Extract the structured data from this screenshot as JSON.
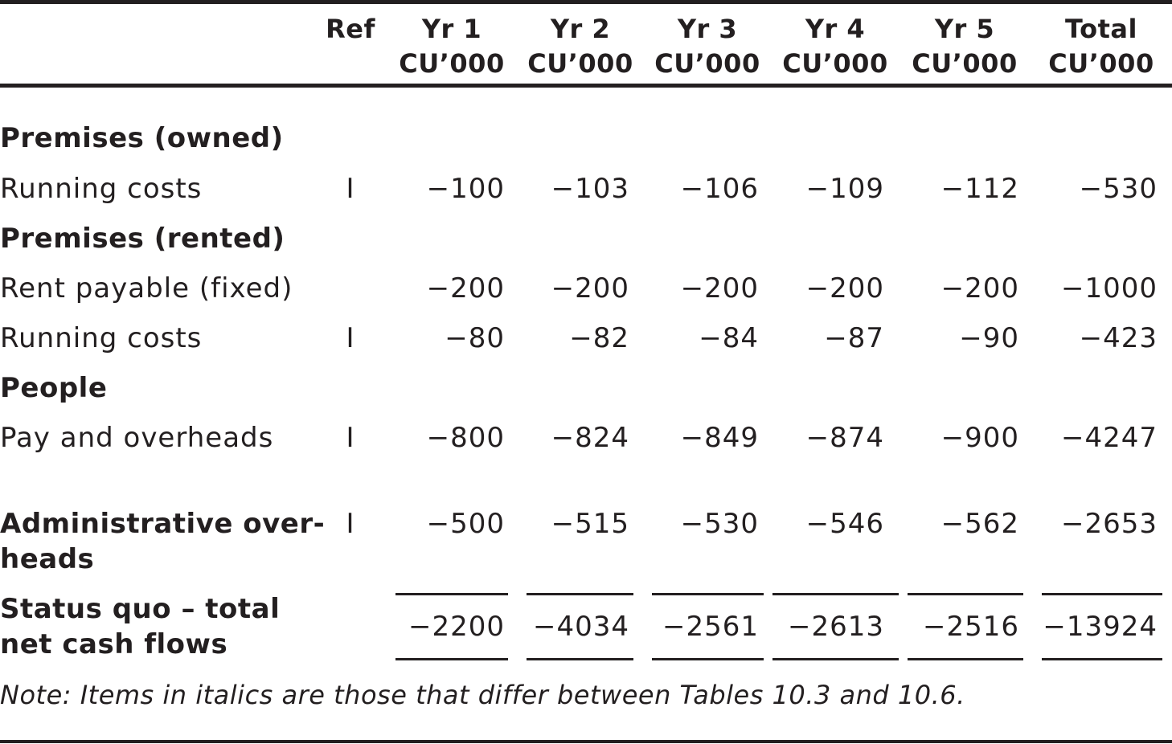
{
  "header": {
    "ref": "Ref",
    "columns": [
      {
        "year": "Yr 1",
        "unit": "CU’000"
      },
      {
        "year": "Yr 2",
        "unit": "CU’000"
      },
      {
        "year": "Yr 3",
        "unit": "CU’000"
      },
      {
        "year": "Yr 4",
        "unit": "CU’000"
      },
      {
        "year": "Yr 5",
        "unit": "CU’000"
      },
      {
        "year": "Total",
        "unit": "CU’000"
      }
    ]
  },
  "sections": {
    "premises_owned": "Premises (owned)",
    "premises_rented": "Premises (rented)",
    "people": "People"
  },
  "rows": {
    "owned_running": {
      "label": "Running costs",
      "ref": "I",
      "values": [
        "−100",
        "−103",
        "−106",
        "−109",
        "−112",
        "−530"
      ]
    },
    "rent_payable": {
      "label": "Rent payable (fixed)",
      "ref": "",
      "values": [
        "−200",
        "−200",
        "−200",
        "−200",
        "−200",
        "−1000"
      ]
    },
    "rented_running": {
      "label": "Running costs",
      "ref": "I",
      "values": [
        "−80",
        "−82",
        "−84",
        "−87",
        "−90",
        "−423"
      ]
    },
    "pay_overheads": {
      "label": "Pay and overheads",
      "ref": "I",
      "values": [
        "−800",
        "−824",
        "−849",
        "−874",
        "−900",
        "−4247"
      ]
    },
    "admin_overheads": {
      "label_line1": "Administrative over-",
      "label_line2": "heads",
      "ref": "I",
      "values": [
        "−500",
        "−515",
        "−530",
        "−546",
        "−562",
        "−2653"
      ]
    },
    "status_quo": {
      "label_line1": "Status quo – total",
      "label_line2": "net cash flows",
      "values": [
        "−2200",
        "−4034",
        "−2561",
        "−2613",
        "−2516",
        "−13924"
      ]
    }
  },
  "note": "Note: Items in italics are those that differ between Tables 10.3 and 10.6."
}
